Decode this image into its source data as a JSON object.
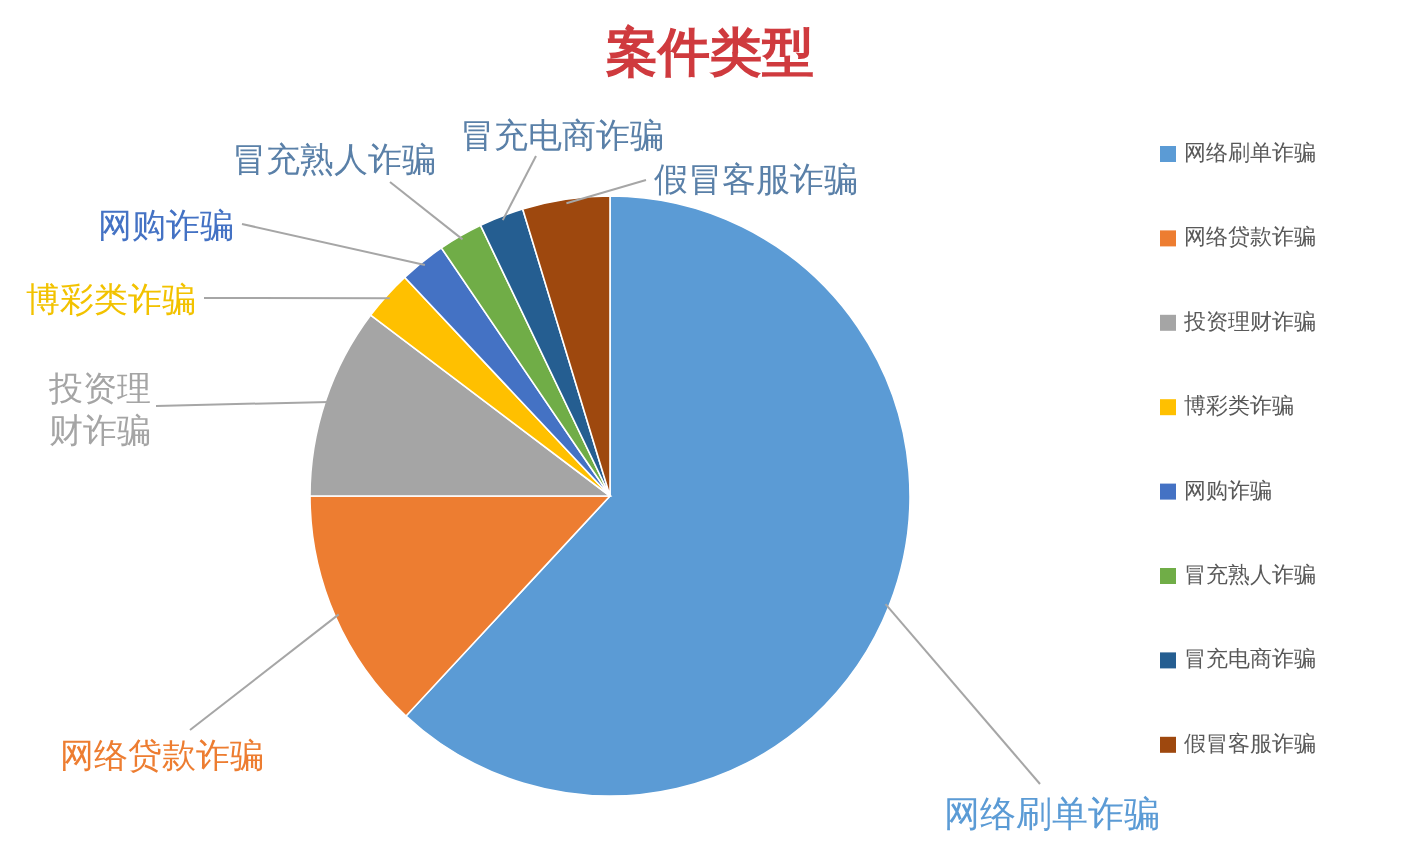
{
  "chart_data": {
    "type": "pie",
    "title": "案件类型",
    "categories": [
      "网络刷单诈骗",
      "网络贷款诈骗",
      "投资理财诈骗",
      "博彩类诈骗",
      "网购诈骗",
      "冒充熟人诈骗",
      "冒充电商诈骗",
      "假冒客服诈骗"
    ],
    "values": [
      61.9,
      13.1,
      10.3,
      2.7,
      2.5,
      2.4,
      2.4,
      4.7
    ],
    "colors": [
      "#5b9bd5",
      "#ed7d31",
      "#a5a5a5",
      "#ffc000",
      "#4472c4",
      "#70ad47",
      "#255e91",
      "#9e480e"
    ],
    "legend": "right"
  }
}
